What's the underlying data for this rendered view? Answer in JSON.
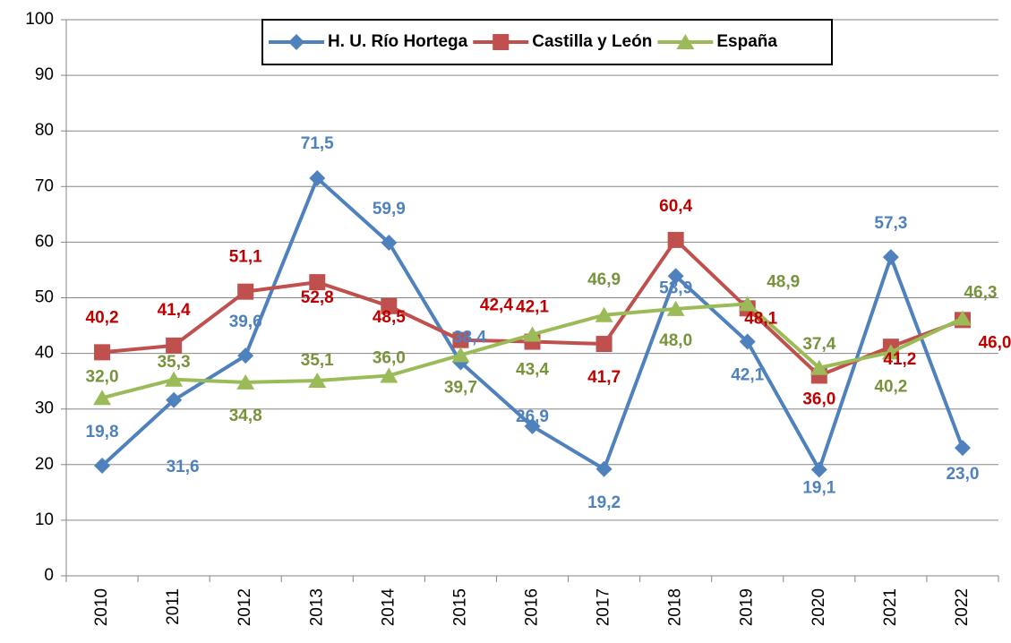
{
  "chart_data": {
    "type": "line",
    "categories": [
      "2010",
      "2011",
      "2012",
      "2013",
      "2014",
      "2015",
      "2016",
      "2017",
      "2018",
      "2019",
      "2020",
      "2021",
      "2022"
    ],
    "series": [
      {
        "name": "H. U. Río Hortega",
        "color": "#4f81bd",
        "label_color": "#4f81bd",
        "marker": "diamond",
        "values": [
          19.8,
          31.6,
          39.6,
          71.5,
          59.9,
          38.4,
          26.9,
          19.2,
          53.9,
          42.1,
          19.1,
          57.3,
          23.0
        ],
        "value_labels": [
          "19,8",
          "31,6",
          "39,6",
          "71,5",
          "59,9",
          "38,4",
          "26,9",
          "19,2",
          "53,9",
          "42,1",
          "19,1",
          "57,3",
          "23,0"
        ]
      },
      {
        "name": "Castilla y León",
        "color": "#c0504d",
        "label_color": "#c00000",
        "marker": "square",
        "values": [
          40.2,
          41.4,
          51.1,
          52.8,
          48.5,
          42.4,
          42.1,
          41.7,
          60.4,
          48.1,
          36.0,
          41.2,
          46.0
        ],
        "value_labels": [
          "40,2",
          "41,4",
          "51,1",
          "52,8",
          "48,5",
          "42,4",
          "42,1",
          "41,7",
          "60,4",
          "48,1",
          "36,0",
          "41,2",
          "46,0"
        ]
      },
      {
        "name": "España",
        "color": "#9bbb59",
        "label_color": "#77933c",
        "marker": "triangle",
        "values": [
          32.0,
          35.3,
          34.8,
          35.1,
          36.0,
          39.7,
          43.4,
          46.9,
          48.0,
          48.9,
          37.4,
          40.2,
          46.3
        ],
        "value_labels": [
          "32,0",
          "35,3",
          "34,8",
          "35,1",
          "36,0",
          "39,7",
          "43,4",
          "46,9",
          "48,0",
          "48,9",
          "37,4",
          "40,2",
          "46,3"
        ]
      }
    ],
    "ylim": [
      0,
      100
    ],
    "yticks": [
      0,
      10,
      20,
      30,
      40,
      50,
      60,
      70,
      80,
      90,
      100
    ],
    "grid": true,
    "legend": "top"
  }
}
